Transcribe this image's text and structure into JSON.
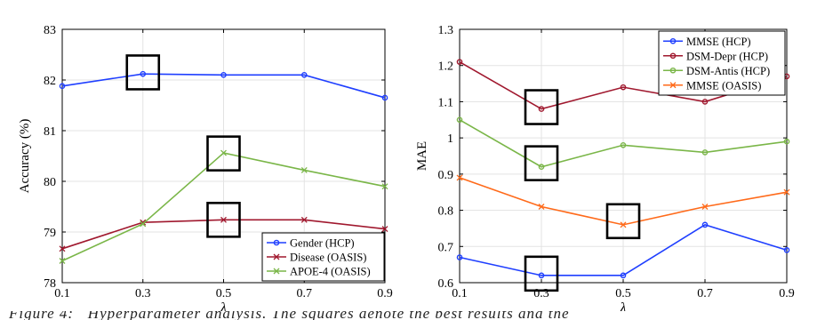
{
  "colors": {
    "blue": "#1f3fff",
    "darkred": "#a0182e",
    "green": "#7ab648",
    "orange": "#ff6a1a",
    "grid": "#e3e3e3",
    "axis": "#000000",
    "highlight_box": "#000000"
  },
  "chart_data": [
    {
      "type": "line",
      "title": "",
      "xlabel": "λ",
      "ylabel": "Accuracy (%)",
      "x": [
        0.1,
        0.3,
        0.5,
        0.7,
        0.9
      ],
      "xticks": [
        "0.1",
        "0.3",
        "0.5",
        "0.7",
        "0.9"
      ],
      "yticks": [
        "78",
        "79",
        "80",
        "81",
        "82",
        "83"
      ],
      "xlim": [
        0.1,
        0.9
      ],
      "ylim": [
        78,
        83
      ],
      "grid": true,
      "legend_position": "bottom-right",
      "series": [
        {
          "name": "Gender (HCP)",
          "color": "#1f3fff",
          "marker": "circle",
          "values": [
            81.88,
            82.12,
            82.1,
            82.1,
            81.65
          ]
        },
        {
          "name": "Disease (OASIS)",
          "color": "#a0182e",
          "marker": "x",
          "values": [
            78.67,
            79.19,
            79.24,
            79.24,
            79.06
          ]
        },
        {
          "name": "APOE-4 (OASIS)",
          "color": "#7ab648",
          "marker": "x",
          "values": [
            78.43,
            79.16,
            80.56,
            80.22,
            79.9
          ]
        }
      ],
      "highlight_boxes": [
        {
          "x": 0.3,
          "y": 82.15
        },
        {
          "x": 0.5,
          "y": 80.55
        },
        {
          "x": 0.5,
          "y": 79.24
        }
      ]
    },
    {
      "type": "line",
      "title": "",
      "xlabel": "λ",
      "ylabel": "MAE",
      "x": [
        0.1,
        0.3,
        0.5,
        0.7,
        0.9
      ],
      "xticks": [
        "0.1",
        "0.3",
        "0.5",
        "0.7",
        "0.9"
      ],
      "yticks": [
        "0.6",
        "0.7",
        "0.8",
        "0.9",
        "1",
        "1.1",
        "1.2",
        "1.3"
      ],
      "xlim": [
        0.1,
        0.9
      ],
      "ylim": [
        0.6,
        1.3
      ],
      "grid": true,
      "legend_position": "top-right",
      "series": [
        {
          "name": "MMSE (HCP)",
          "color": "#1f3fff",
          "marker": "circle",
          "values": [
            0.67,
            0.62,
            0.62,
            0.76,
            0.69
          ]
        },
        {
          "name": "DSM-Depr (HCP)",
          "color": "#a0182e",
          "marker": "circle",
          "values": [
            1.21,
            1.08,
            1.14,
            1.1,
            1.17
          ]
        },
        {
          "name": "DSM-Antis (HCP)",
          "color": "#7ab648",
          "marker": "circle",
          "values": [
            1.05,
            0.92,
            0.98,
            0.96,
            0.99
          ]
        },
        {
          "name": "MMSE (OASIS)",
          "color": "#ff6a1a",
          "marker": "x",
          "values": [
            0.89,
            0.81,
            0.76,
            0.81,
            0.85
          ]
        }
      ],
      "highlight_boxes": [
        {
          "x": 0.3,
          "y": 1.085
        },
        {
          "x": 0.3,
          "y": 0.93
        },
        {
          "x": 0.5,
          "y": 0.77
        },
        {
          "x": 0.3,
          "y": 0.625
        }
      ]
    }
  ]
}
